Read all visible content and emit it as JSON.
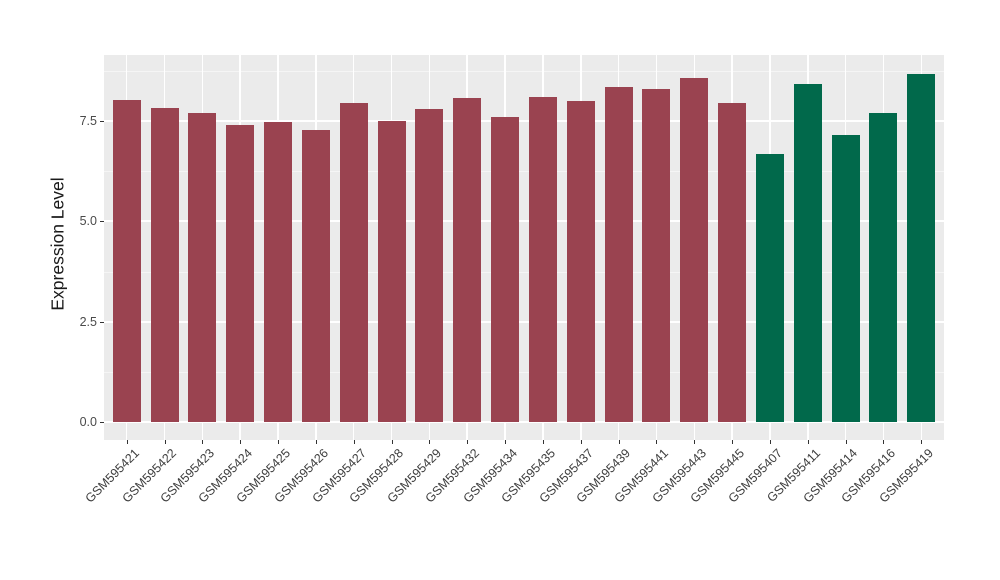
{
  "chart_data": {
    "type": "bar",
    "title": "",
    "xlabel": "",
    "ylabel": "Expression Level",
    "ylim": [
      0,
      9.15
    ],
    "yticks": [
      0.0,
      2.5,
      5.0,
      7.5
    ],
    "ytick_labels": [
      "0.0",
      "2.5",
      "5.0",
      "7.5"
    ],
    "minor_yticks": [
      1.25,
      3.75,
      6.25,
      8.75
    ],
    "grid": true,
    "legend_position": "none",
    "categories": [
      "GSM595421",
      "GSM595422",
      "GSM595423",
      "GSM595424",
      "GSM595425",
      "GSM595426",
      "GSM595427",
      "GSM595428",
      "GSM595429",
      "GSM595432",
      "GSM595434",
      "GSM595435",
      "GSM595437",
      "GSM595439",
      "GSM595441",
      "GSM595443",
      "GSM595445",
      "GSM595407",
      "GSM595411",
      "GSM595414",
      "GSM595416",
      "GSM595419"
    ],
    "bars": [
      {
        "label": "GSM595421",
        "value": 8.03,
        "group": "A"
      },
      {
        "label": "GSM595422",
        "value": 7.83,
        "group": "A"
      },
      {
        "label": "GSM595423",
        "value": 7.7,
        "group": "A"
      },
      {
        "label": "GSM595424",
        "value": 7.41,
        "group": "A"
      },
      {
        "label": "GSM595425",
        "value": 7.47,
        "group": "A"
      },
      {
        "label": "GSM595426",
        "value": 7.27,
        "group": "A"
      },
      {
        "label": "GSM595427",
        "value": 7.95,
        "group": "A"
      },
      {
        "label": "GSM595428",
        "value": 7.51,
        "group": "A"
      },
      {
        "label": "GSM595429",
        "value": 7.8,
        "group": "A"
      },
      {
        "label": "GSM595432",
        "value": 8.08,
        "group": "A"
      },
      {
        "label": "GSM595434",
        "value": 7.6,
        "group": "A"
      },
      {
        "label": "GSM595435",
        "value": 8.1,
        "group": "A"
      },
      {
        "label": "GSM595437",
        "value": 7.99,
        "group": "A"
      },
      {
        "label": "GSM595439",
        "value": 8.36,
        "group": "A"
      },
      {
        "label": "GSM595441",
        "value": 8.31,
        "group": "A"
      },
      {
        "label": "GSM595443",
        "value": 8.57,
        "group": "A"
      },
      {
        "label": "GSM595445",
        "value": 7.96,
        "group": "A"
      },
      {
        "label": "GSM595407",
        "value": 6.69,
        "group": "B"
      },
      {
        "label": "GSM595411",
        "value": 8.42,
        "group": "B"
      },
      {
        "label": "GSM595414",
        "value": 7.14,
        "group": "B"
      },
      {
        "label": "GSM595416",
        "value": 7.71,
        "group": "B"
      },
      {
        "label": "GSM595419",
        "value": 8.68,
        "group": "B"
      }
    ],
    "group_colors": {
      "A": "#9A4350",
      "B": "#01694B"
    },
    "colors": {
      "panel_background": "#EBEBEB",
      "grid_major": "#FFFFFF",
      "grid_minor": "#F5F5F5",
      "tick_mark": "#333333",
      "tick_label": "#4a4a4a",
      "axis_title": "#1a1a1a",
      "page_background": "#FFFFFF"
    }
  }
}
